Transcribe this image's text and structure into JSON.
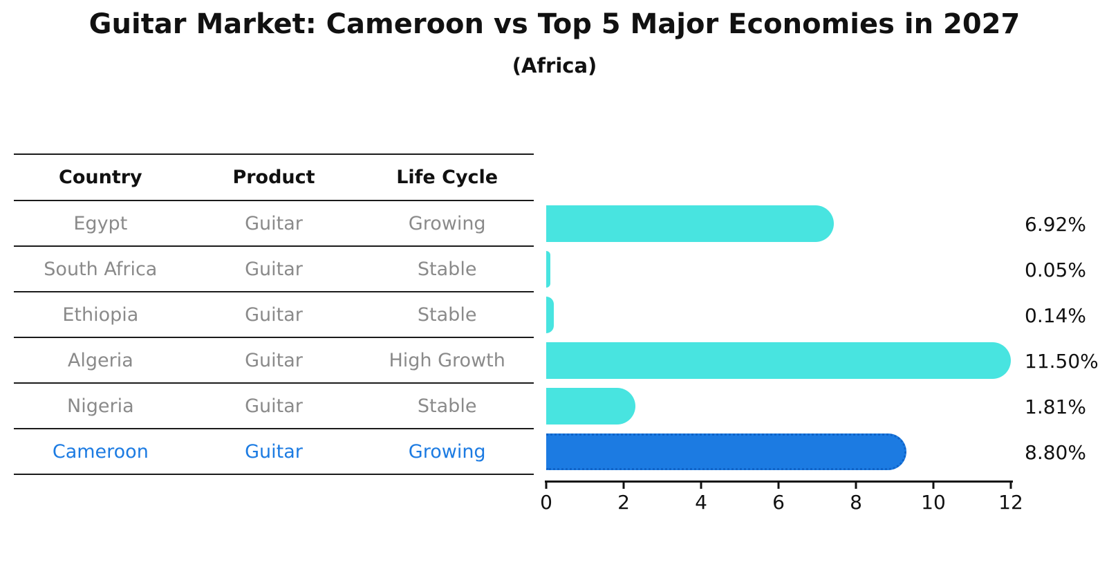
{
  "title": "Guitar Market: Cameroon vs Top 5 Major Economies in 2027",
  "subtitle": "(Africa)",
  "table": {
    "headers": [
      "Country",
      "Product",
      "Life Cycle"
    ],
    "rows": [
      {
        "country": "Egypt",
        "product": "Guitar",
        "life_cycle": "Growing",
        "highlight": false
      },
      {
        "country": "South Africa",
        "product": "Guitar",
        "life_cycle": "Stable",
        "highlight": false
      },
      {
        "country": "Ethiopia",
        "product": "Guitar",
        "life_cycle": "Stable",
        "highlight": false
      },
      {
        "country": "Algeria",
        "product": "Guitar",
        "life_cycle": "High Growth",
        "highlight": false
      },
      {
        "country": "Nigeria",
        "product": "Guitar",
        "life_cycle": "Stable",
        "highlight": false
      },
      {
        "country": "Cameroon",
        "product": "Guitar",
        "life_cycle": "Growing",
        "highlight": true
      }
    ]
  },
  "chart_data": {
    "type": "bar",
    "orientation": "horizontal",
    "title": "Guitar Market: Cameroon vs Top 5 Major Economies in 2027",
    "subtitle": "(Africa)",
    "categories": [
      "Egypt",
      "South Africa",
      "Ethiopia",
      "Algeria",
      "Nigeria",
      "Cameroon"
    ],
    "values": [
      6.92,
      0.05,
      0.14,
      11.5,
      1.81,
      8.8
    ],
    "value_labels": [
      "6.92%",
      "0.05%",
      "0.14%",
      "11.50%",
      "1.81%",
      "8.80%"
    ],
    "unit": "percent",
    "xlabel": "",
    "ylabel": "",
    "xlim": [
      0,
      12
    ],
    "x_ticks": [
      0,
      2,
      4,
      6,
      8,
      10,
      12
    ],
    "grid": false,
    "legend": "none",
    "highlight_index": 5,
    "bar_color": "#48E4E0",
    "highlight_color": "#1C7BE2",
    "highlight_border_style": "dotted",
    "label_color": "#111111",
    "row_text_color": "#8a8a8a",
    "highlight_text_color": "#1C7BE2"
  }
}
